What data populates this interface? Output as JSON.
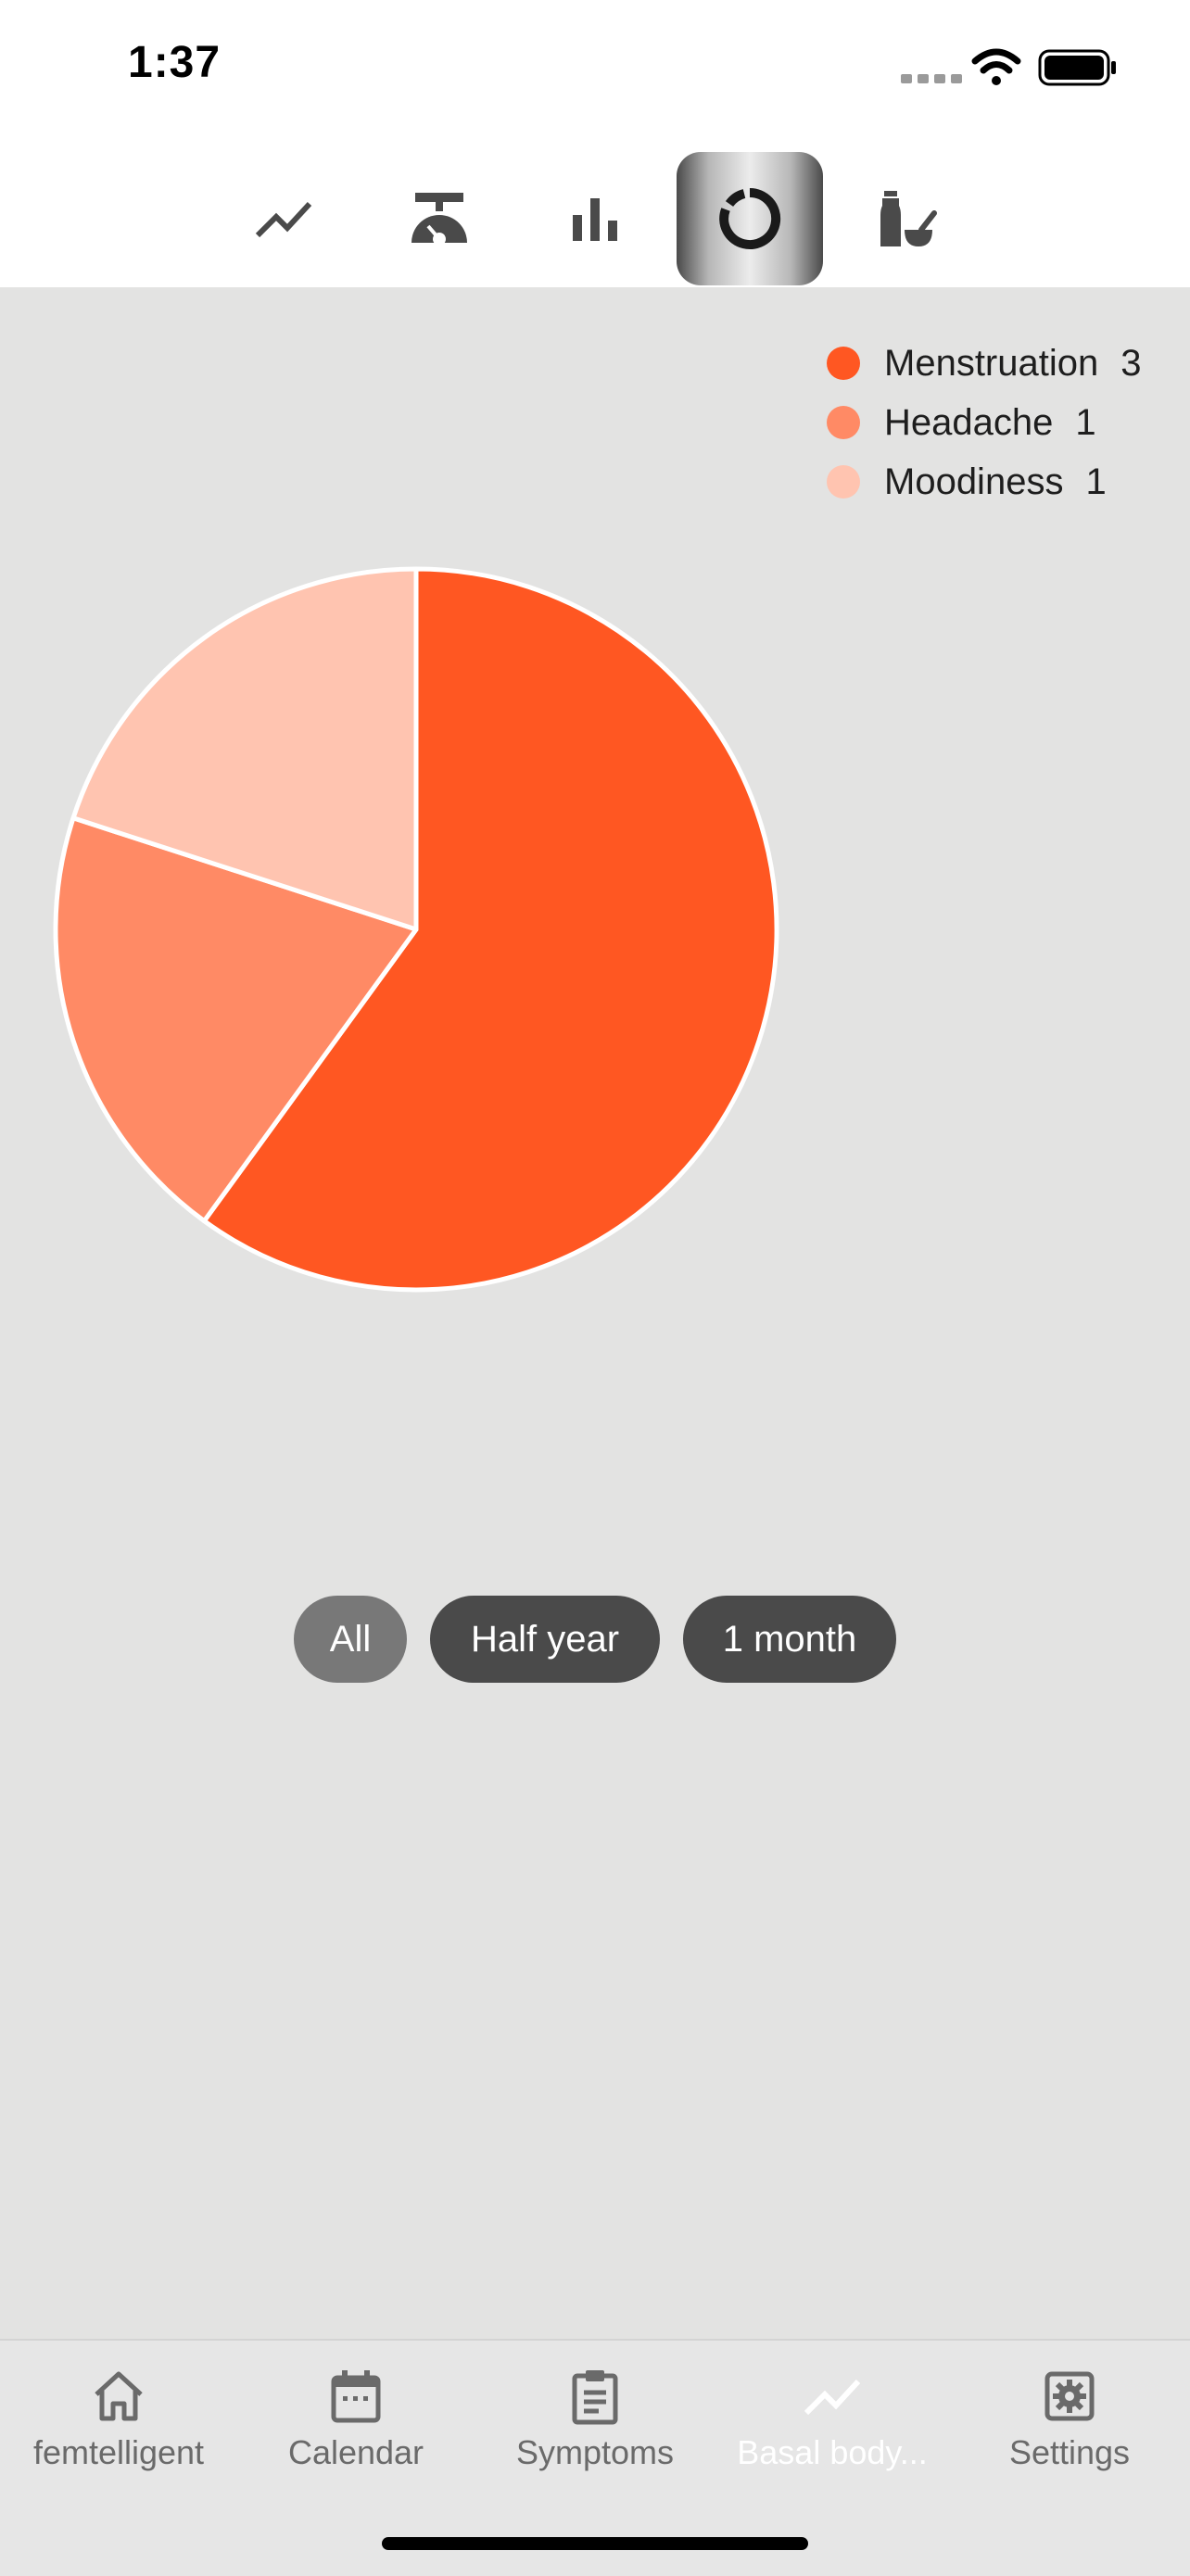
{
  "status_bar": {
    "time": "1:37"
  },
  "toolbar": {
    "buttons": [
      {
        "icon": "line-chart-icon",
        "active": false
      },
      {
        "icon": "scale-icon",
        "active": false
      },
      {
        "icon": "bar-chart-icon",
        "active": false
      },
      {
        "icon": "donut-chart-icon",
        "active": true
      },
      {
        "icon": "medicine-icon",
        "active": false
      }
    ]
  },
  "chart_data": {
    "type": "pie",
    "slices": [
      {
        "label": "Menstruation",
        "value": 3,
        "color": "#ff5722"
      },
      {
        "label": "Headache",
        "value": 1,
        "color": "#ff8a65"
      },
      {
        "label": "Moodiness",
        "value": 1,
        "color": "#ffc4b0"
      }
    ],
    "legend_position": "top-right"
  },
  "legend": [
    {
      "label": "Menstruation",
      "count": "3",
      "color": "#ff5722"
    },
    {
      "label": "Headache",
      "count": "1",
      "color": "#ff8a65"
    },
    {
      "label": "Moodiness",
      "count": "1",
      "color": "#ffc4b0"
    }
  ],
  "filters": [
    {
      "label": "All",
      "selected": true
    },
    {
      "label": "Half year",
      "selected": false
    },
    {
      "label": "1 month",
      "selected": false
    }
  ],
  "tabbar": {
    "tabs": [
      {
        "label": "femtelligent",
        "icon": "home-icon"
      },
      {
        "label": "Calendar",
        "icon": "calendar-icon"
      },
      {
        "label": "Symptoms",
        "icon": "clipboard-icon"
      },
      {
        "label": "Basal body...",
        "icon": "trend-icon",
        "active": true
      },
      {
        "label": "Settings",
        "icon": "gear-icon"
      }
    ]
  }
}
